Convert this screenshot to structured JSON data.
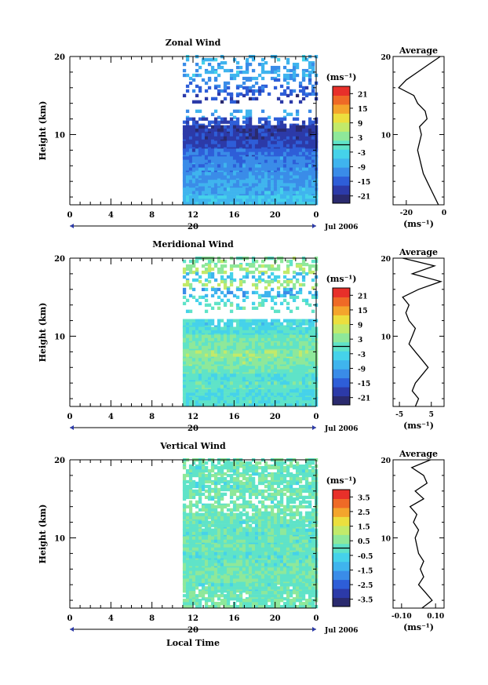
{
  "common": {
    "ylabel": "Height (km)",
    "xlabel": "Local Time",
    "time_ticks": [
      "0",
      "4",
      "8",
      "12",
      "16",
      "20",
      "0"
    ],
    "height_ticks": [
      "20",
      "10"
    ],
    "date_day": "20",
    "date_label": "Jul 2006",
    "unit": "(ms⁻¹)",
    "profile_title": "Average",
    "profile_xlabel": "(ms⁻¹)"
  },
  "panels": [
    {
      "title": "Zonal Wind",
      "colorbar_ticks": [
        "21",
        "15",
        "9",
        "3",
        "-3",
        "-9",
        "-15",
        "-21"
      ],
      "profile_xticks": [
        "-20",
        "0"
      ]
    },
    {
      "title": "Meridional Wind",
      "colorbar_ticks": [
        "21",
        "15",
        "9",
        "3",
        "-3",
        "-9",
        "-15",
        "-21"
      ],
      "profile_xticks": [
        "-5",
        "5"
      ]
    },
    {
      "title": "Vertical Wind",
      "colorbar_ticks": [
        "3.5",
        "2.5",
        "1.5",
        "0.5",
        "-0.5",
        "-1.5",
        "-2.5",
        "-3.5"
      ],
      "profile_xticks": [
        "-0.10",
        "0.10"
      ]
    }
  ],
  "colormap": [
    "#2a2a6e",
    "#2c3aa8",
    "#2e5ed8",
    "#3a8ce8",
    "#3fb4ee",
    "#45d2ea",
    "#5fe3c8",
    "#8ee89a",
    "#c2ea6a",
    "#ecdf3e",
    "#f4a52c",
    "#ef6a26",
    "#e8302a"
  ],
  "chart_data": [
    {
      "type": "heatmap",
      "title": "Zonal Wind",
      "ylabel": "Height (km)",
      "x_ticks": [
        "0",
        "4",
        "8",
        "12",
        "16",
        "20",
        "0"
      ],
      "ylim": [
        1,
        20
      ],
      "colorbar_label": "(ms⁻¹)",
      "colorbar_range": [
        -24,
        24
      ],
      "observed_time_range": [
        11,
        24
      ],
      "rows": [
        {
          "height": 19.5,
          "value": -7,
          "coverage": 0.3
        },
        {
          "height": 18.5,
          "value": -10,
          "coverage": 0.45
        },
        {
          "height": 17.5,
          "value": -8,
          "coverage": 0.4
        },
        {
          "height": 16.5,
          "value": -12,
          "coverage": 0.3
        },
        {
          "height": 15.5,
          "value": -14,
          "coverage": 0.35
        },
        {
          "height": 14.5,
          "value": -18,
          "coverage": 0.25
        },
        {
          "height": 12.5,
          "value": -8,
          "coverage": 0.2
        },
        {
          "height": 11.5,
          "value": -16,
          "coverage": 0.6
        },
        {
          "height": 10.5,
          "value": -19,
          "coverage": 0.95
        },
        {
          "height": 9.5,
          "value": -18,
          "coverage": 1.0
        },
        {
          "height": 8.5,
          "value": -17,
          "coverage": 1.0
        },
        {
          "height": 7.5,
          "value": -14,
          "coverage": 1.0
        },
        {
          "height": 6.5,
          "value": -12,
          "coverage": 1.0
        },
        {
          "height": 5.5,
          "value": -11,
          "coverage": 1.0
        },
        {
          "height": 4.5,
          "value": -10,
          "coverage": 1.0
        },
        {
          "height": 3.5,
          "value": -9,
          "coverage": 1.0
        },
        {
          "height": 2.5,
          "value": -8,
          "coverage": 1.0
        },
        {
          "height": 1.5,
          "value": -6,
          "coverage": 1.0
        }
      ],
      "profile": {
        "title": "Average",
        "xlim": [
          -27,
          0
        ],
        "x_ticks": [
          "-20",
          "0"
        ],
        "heights": [
          1,
          2,
          3,
          4,
          5,
          6,
          7,
          8,
          9,
          10,
          11,
          12,
          13,
          14,
          15,
          16,
          17,
          18,
          19,
          20
        ],
        "values": [
          -3,
          -5,
          -7,
          -9,
          -11,
          -12,
          -13,
          -14,
          -13,
          -12,
          -13,
          -9,
          -10,
          -14,
          -16,
          -24,
          -20,
          -14,
          -8,
          -2
        ]
      }
    },
    {
      "type": "heatmap",
      "title": "Meridional Wind",
      "ylabel": "Height (km)",
      "x_ticks": [
        "0",
        "4",
        "8",
        "12",
        "16",
        "20",
        "0"
      ],
      "ylim": [
        1,
        20
      ],
      "colorbar_label": "(ms⁻¹)",
      "colorbar_range": [
        -24,
        24
      ],
      "observed_time_range": [
        11,
        24
      ],
      "rows": [
        {
          "height": 19.5,
          "value": 3,
          "coverage": 0.4
        },
        {
          "height": 18.5,
          "value": 5,
          "coverage": 0.5
        },
        {
          "height": 17.5,
          "value": -5,
          "coverage": 0.35
        },
        {
          "height": 16.5,
          "value": 6,
          "coverage": 0.4
        },
        {
          "height": 15.5,
          "value": -8,
          "coverage": 0.45
        },
        {
          "height": 14.5,
          "value": -2,
          "coverage": 0.3
        },
        {
          "height": 13.5,
          "value": 0,
          "coverage": 0.2
        },
        {
          "height": 11.5,
          "value": -3,
          "coverage": 0.9
        },
        {
          "height": 10.5,
          "value": -1,
          "coverage": 1.0
        },
        {
          "height": 9.5,
          "value": 1,
          "coverage": 1.0
        },
        {
          "height": 8.5,
          "value": 2,
          "coverage": 1.0
        },
        {
          "height": 7.5,
          "value": 4,
          "coverage": 1.0
        },
        {
          "height": 6.5,
          "value": 3,
          "coverage": 1.0
        },
        {
          "height": 5.5,
          "value": 1,
          "coverage": 1.0
        },
        {
          "height": 4.5,
          "value": -1,
          "coverage": 1.0
        },
        {
          "height": 3.5,
          "value": 0,
          "coverage": 1.0
        },
        {
          "height": 2.5,
          "value": -2,
          "coverage": 1.0
        },
        {
          "height": 1.5,
          "value": -1,
          "coverage": 1.0
        }
      ],
      "profile": {
        "title": "Average",
        "xlim": [
          -7,
          9
        ],
        "x_ticks": [
          "-5",
          "5"
        ],
        "heights": [
          1,
          2,
          3,
          4,
          5,
          6,
          7,
          8,
          9,
          10,
          11,
          12,
          13,
          14,
          15,
          16,
          17,
          18,
          19,
          20
        ],
        "values": [
          0,
          1,
          -1,
          0,
          2,
          4,
          2,
          0,
          -2,
          -1,
          0,
          -2,
          -3,
          -2,
          -4,
          1,
          8,
          -1,
          6,
          -4
        ]
      }
    },
    {
      "type": "heatmap",
      "title": "Vertical Wind",
      "ylabel": "Height (km)",
      "x_ticks": [
        "0",
        "4",
        "8",
        "12",
        "16",
        "20",
        "0"
      ],
      "ylim": [
        1,
        20
      ],
      "colorbar_label": "(ms⁻¹)",
      "colorbar_range": [
        -4,
        4
      ],
      "observed_time_range": [
        11,
        24
      ],
      "rows": [
        {
          "height": 19.5,
          "value": 0.2,
          "coverage": 0.7
        },
        {
          "height": 18.5,
          "value": 0.1,
          "coverage": 0.8
        },
        {
          "height": 17.5,
          "value": 0.3,
          "coverage": 0.85
        },
        {
          "height": 16.5,
          "value": 0.0,
          "coverage": 0.8
        },
        {
          "height": 15.5,
          "value": 0.2,
          "coverage": 0.75
        },
        {
          "height": 14.5,
          "value": 0.1,
          "coverage": 0.6
        },
        {
          "height": 13.5,
          "value": 0.4,
          "coverage": 0.7
        },
        {
          "height": 12.5,
          "value": 0.2,
          "coverage": 0.9
        },
        {
          "height": 11.5,
          "value": 0.1,
          "coverage": 0.95
        },
        {
          "height": 10.5,
          "value": 0.0,
          "coverage": 1.0
        },
        {
          "height": 9.5,
          "value": 0.1,
          "coverage": 1.0
        },
        {
          "height": 8.5,
          "value": 0.2,
          "coverage": 1.0
        },
        {
          "height": 7.5,
          "value": 0.0,
          "coverage": 1.0
        },
        {
          "height": 6.5,
          "value": 0.1,
          "coverage": 1.0
        },
        {
          "height": 5.5,
          "value": 0.2,
          "coverage": 1.0
        },
        {
          "height": 4.5,
          "value": 0.3,
          "coverage": 1.0
        },
        {
          "height": 3.5,
          "value": 0.1,
          "coverage": 0.95
        },
        {
          "height": 2.5,
          "value": 0.2,
          "coverage": 0.9
        },
        {
          "height": 1.5,
          "value": 0.2,
          "coverage": 0.85
        }
      ],
      "profile": {
        "title": "Average",
        "xlim": [
          -0.15,
          0.15
        ],
        "x_ticks": [
          "-0.10",
          "0.10"
        ],
        "heights": [
          1,
          2,
          3,
          4,
          5,
          6,
          7,
          8,
          9,
          10,
          11,
          12,
          13,
          14,
          15,
          16,
          17,
          18,
          19,
          20
        ],
        "values": [
          0.02,
          0.08,
          0.04,
          0.0,
          0.03,
          0.01,
          0.03,
          0.0,
          -0.01,
          -0.02,
          0.0,
          -0.03,
          -0.01,
          -0.05,
          0.03,
          -0.02,
          0.05,
          0.03,
          -0.04,
          0.07
        ]
      }
    }
  ]
}
